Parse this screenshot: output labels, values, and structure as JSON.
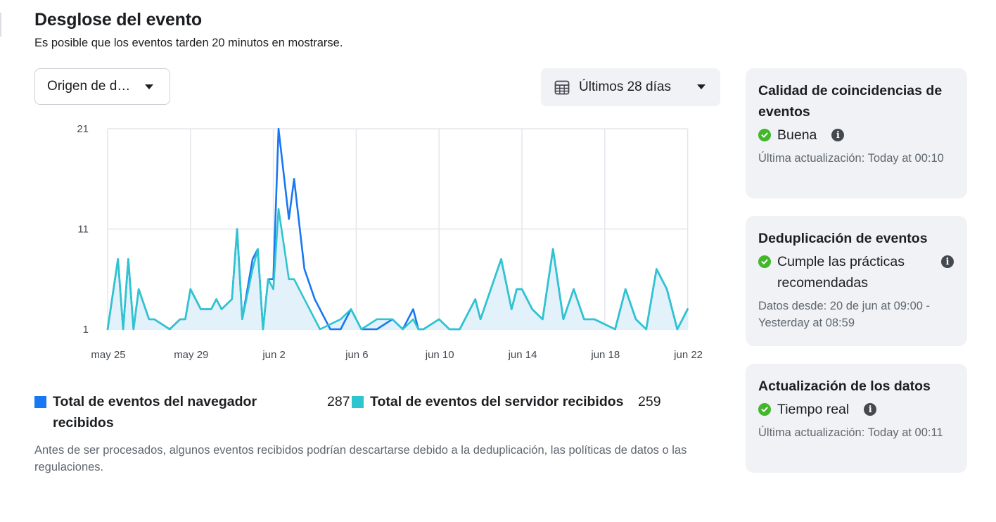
{
  "header": {
    "title": "Desglose del evento",
    "subtitle": "Es posible que los eventos tarden 20 minutos en mostrarse."
  },
  "filters": {
    "source_label": "Origen de datos",
    "date_range_label": "Últimos 28 días",
    "calendar_icon": "calendar-icon"
  },
  "colors": {
    "browser": "#1877f2",
    "server": "#2ec5cf",
    "fill": "#e3f1fa",
    "grid": "#e4e6eb",
    "ok": "#42b72a"
  },
  "chart_data": {
    "type": "line",
    "x": [
      "may 25",
      "may 26",
      "may 27",
      "may 28",
      "may 29",
      "may 30",
      "may 31",
      "jun 1",
      "jun 2",
      "jun 3",
      "jun 4",
      "jun 5",
      "jun 6",
      "jun 7",
      "jun 8",
      "jun 9",
      "jun 10",
      "jun 11",
      "jun 12",
      "jun 13",
      "jun 14",
      "jun 15",
      "jun 16",
      "jun 17",
      "jun 18",
      "jun 19",
      "jun 20",
      "jun 21",
      "jun 22"
    ],
    "xticks": [
      "may 25",
      "may 29",
      "jun 2",
      "jun 6",
      "jun 10",
      "jun 14",
      "jun 18",
      "jun 22"
    ],
    "yticks": [
      1,
      11,
      21
    ],
    "ylim": [
      1,
      21
    ],
    "grid": true,
    "series": [
      {
        "name": "Total de eventos del navegador recibidos",
        "total": "287",
        "points": [
          [
            0,
            1
          ],
          [
            0.5,
            8
          ],
          [
            0.75,
            1
          ],
          [
            1,
            8
          ],
          [
            1.25,
            1
          ],
          [
            1.5,
            5
          ],
          [
            2,
            2
          ],
          [
            2.25,
            2
          ],
          [
            3,
            1
          ],
          [
            3.5,
            2
          ],
          [
            3.75,
            2
          ],
          [
            4,
            5
          ],
          [
            4.5,
            3
          ],
          [
            5,
            3
          ],
          [
            5.25,
            4
          ],
          [
            5.5,
            3
          ],
          [
            6,
            4
          ],
          [
            6.25,
            11
          ],
          [
            6.5,
            2
          ],
          [
            7,
            8
          ],
          [
            7.25,
            9
          ],
          [
            7.5,
            1
          ],
          [
            7.75,
            6
          ],
          [
            8,
            6
          ],
          [
            8.25,
            21
          ],
          [
            8.75,
            12
          ],
          [
            9,
            16
          ],
          [
            9.5,
            7
          ],
          [
            10,
            4
          ],
          [
            10.75,
            1
          ],
          [
            11.25,
            1
          ],
          [
            11.75,
            3
          ],
          [
            12.25,
            1
          ],
          [
            13,
            1
          ],
          [
            13.75,
            2
          ],
          [
            14.25,
            1
          ],
          [
            14.75,
            3
          ],
          [
            15,
            1
          ],
          [
            15.25,
            1
          ],
          [
            16,
            2
          ],
          [
            16.5,
            1
          ],
          [
            17,
            1
          ],
          [
            17.75,
            4
          ],
          [
            18,
            2
          ],
          [
            18.5,
            5
          ],
          [
            19,
            8
          ],
          [
            19.5,
            3
          ],
          [
            19.75,
            5
          ],
          [
            20,
            5
          ],
          [
            20.5,
            3
          ],
          [
            21,
            2
          ],
          [
            21.5,
            9
          ],
          [
            22,
            2
          ],
          [
            22.5,
            5
          ],
          [
            23,
            2
          ],
          [
            23.5,
            2
          ],
          [
            24.5,
            1
          ],
          [
            25,
            5
          ],
          [
            25.5,
            2
          ],
          [
            26,
            1
          ],
          [
            26.5,
            7
          ],
          [
            27,
            5
          ],
          [
            27.5,
            1
          ],
          [
            28,
            3
          ]
        ]
      },
      {
        "name": "Total de eventos del servidor recibidos",
        "total": "259",
        "points": [
          [
            0,
            1
          ],
          [
            0.5,
            8
          ],
          [
            0.75,
            1
          ],
          [
            1,
            8
          ],
          [
            1.25,
            1
          ],
          [
            1.5,
            5
          ],
          [
            2,
            2
          ],
          [
            2.25,
            2
          ],
          [
            3,
            1
          ],
          [
            3.5,
            2
          ],
          [
            3.75,
            2
          ],
          [
            4,
            5
          ],
          [
            4.5,
            3
          ],
          [
            5,
            3
          ],
          [
            5.25,
            4
          ],
          [
            5.5,
            3
          ],
          [
            6,
            4
          ],
          [
            6.25,
            11
          ],
          [
            6.5,
            2
          ],
          [
            7,
            7
          ],
          [
            7.25,
            9
          ],
          [
            7.5,
            1
          ],
          [
            7.75,
            6
          ],
          [
            8,
            5
          ],
          [
            8.25,
            13
          ],
          [
            8.75,
            6
          ],
          [
            9,
            6
          ],
          [
            9.5,
            4
          ],
          [
            10.25,
            1
          ],
          [
            11.25,
            2
          ],
          [
            11.75,
            3
          ],
          [
            12.25,
            1
          ],
          [
            13,
            2
          ],
          [
            13.75,
            2
          ],
          [
            14.25,
            1
          ],
          [
            14.75,
            2
          ],
          [
            15,
            1
          ],
          [
            15.25,
            1
          ],
          [
            16,
            2
          ],
          [
            16.5,
            1
          ],
          [
            17,
            1
          ],
          [
            17.75,
            4
          ],
          [
            18,
            2
          ],
          [
            18.5,
            5
          ],
          [
            19,
            8
          ],
          [
            19.5,
            3
          ],
          [
            19.75,
            5
          ],
          [
            20,
            5
          ],
          [
            20.5,
            3
          ],
          [
            21,
            2
          ],
          [
            21.5,
            9
          ],
          [
            22,
            2
          ],
          [
            22.5,
            5
          ],
          [
            23,
            2
          ],
          [
            23.5,
            2
          ],
          [
            24.5,
            1
          ],
          [
            25,
            5
          ],
          [
            25.5,
            2
          ],
          [
            26,
            1
          ],
          [
            26.5,
            7
          ],
          [
            27,
            5
          ],
          [
            27.5,
            1
          ],
          [
            28,
            3
          ]
        ]
      }
    ]
  },
  "footnote": "Antes de ser procesados, algunos eventos recibidos podrían descartarse debido a la deduplicación, las políticas de datos o las regulaciones.",
  "cards": [
    {
      "title": "Calidad de coincidencias de eventos",
      "status": "Buena",
      "meta": "Última actualización: Today at 00:10"
    },
    {
      "title": "Deduplicación de eventos",
      "status": "Cumple las prácticas recomendadas",
      "meta": "Datos desde: 20 de jun at 09:00 - Yesterday at 08:59"
    },
    {
      "title": "Actualización de los datos",
      "status": "Tiempo real",
      "meta": "Última actualización: Today at 00:11"
    }
  ]
}
